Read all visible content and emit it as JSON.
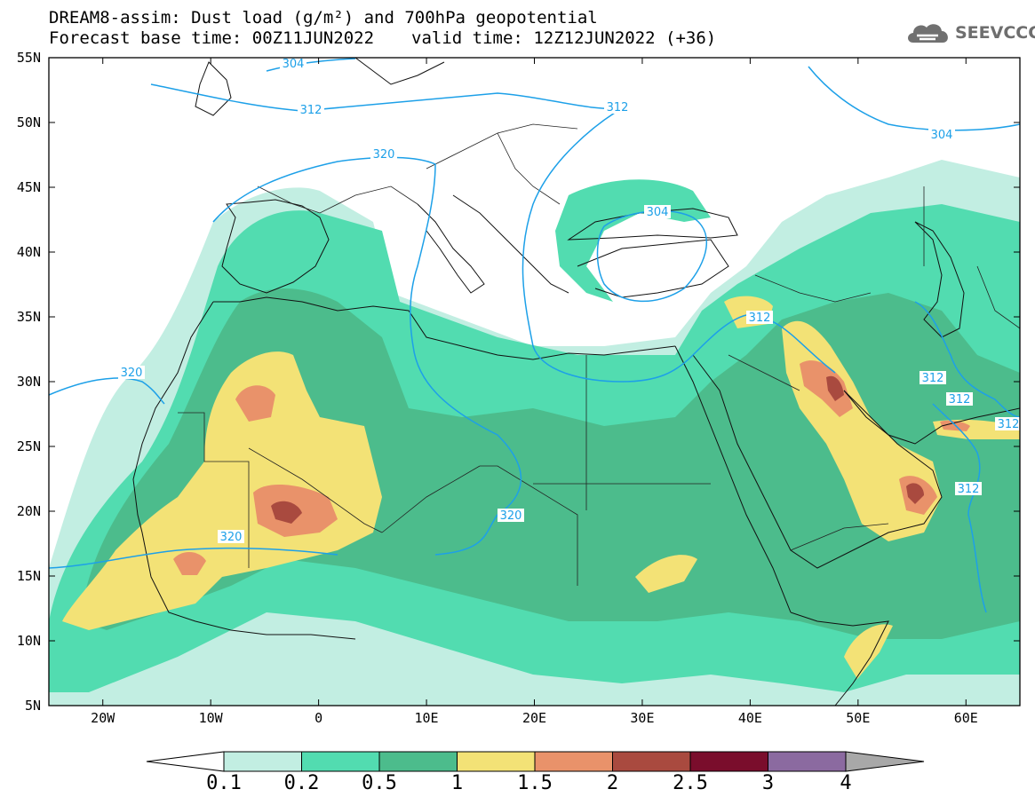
{
  "header": {
    "title_line1": "DREAM8-assim: Dust load (g/m²) and 700hPa geopotential",
    "base_time": "Forecast base time: 00Z11JUN2022",
    "valid_time": "valid time: 12Z12JUN2022 (+36)"
  },
  "logo": {
    "text": "SEEVCCC",
    "icon": "cloud-icon"
  },
  "map": {
    "lat_ticks": [
      "55N",
      "50N",
      "45N",
      "40N",
      "35N",
      "30N",
      "25N",
      "20N",
      "15N",
      "10N",
      "5N"
    ],
    "lon_ticks": [
      "20W",
      "10W",
      "0",
      "10E",
      "20E",
      "30E",
      "40E",
      "50E",
      "60E"
    ],
    "contour_labels": [
      "304",
      "312",
      "304",
      "312",
      "320",
      "304",
      "320",
      "320",
      "320",
      "312",
      "312",
      "312",
      "312",
      "312"
    ],
    "contour_color": "#1da0e8"
  },
  "colorbar": {
    "labels": [
      "0.1",
      "0.2",
      "0.5",
      "1",
      "1.5",
      "2",
      "2.5",
      "3",
      "4"
    ],
    "colors": [
      "#c2eee2",
      "#52dcb0",
      "#4cbc8c",
      "#f3e276",
      "#e9926a",
      "#a94a3f",
      "#7a0d2c",
      "#8b6aa0",
      "#a8a8a8"
    ]
  }
}
